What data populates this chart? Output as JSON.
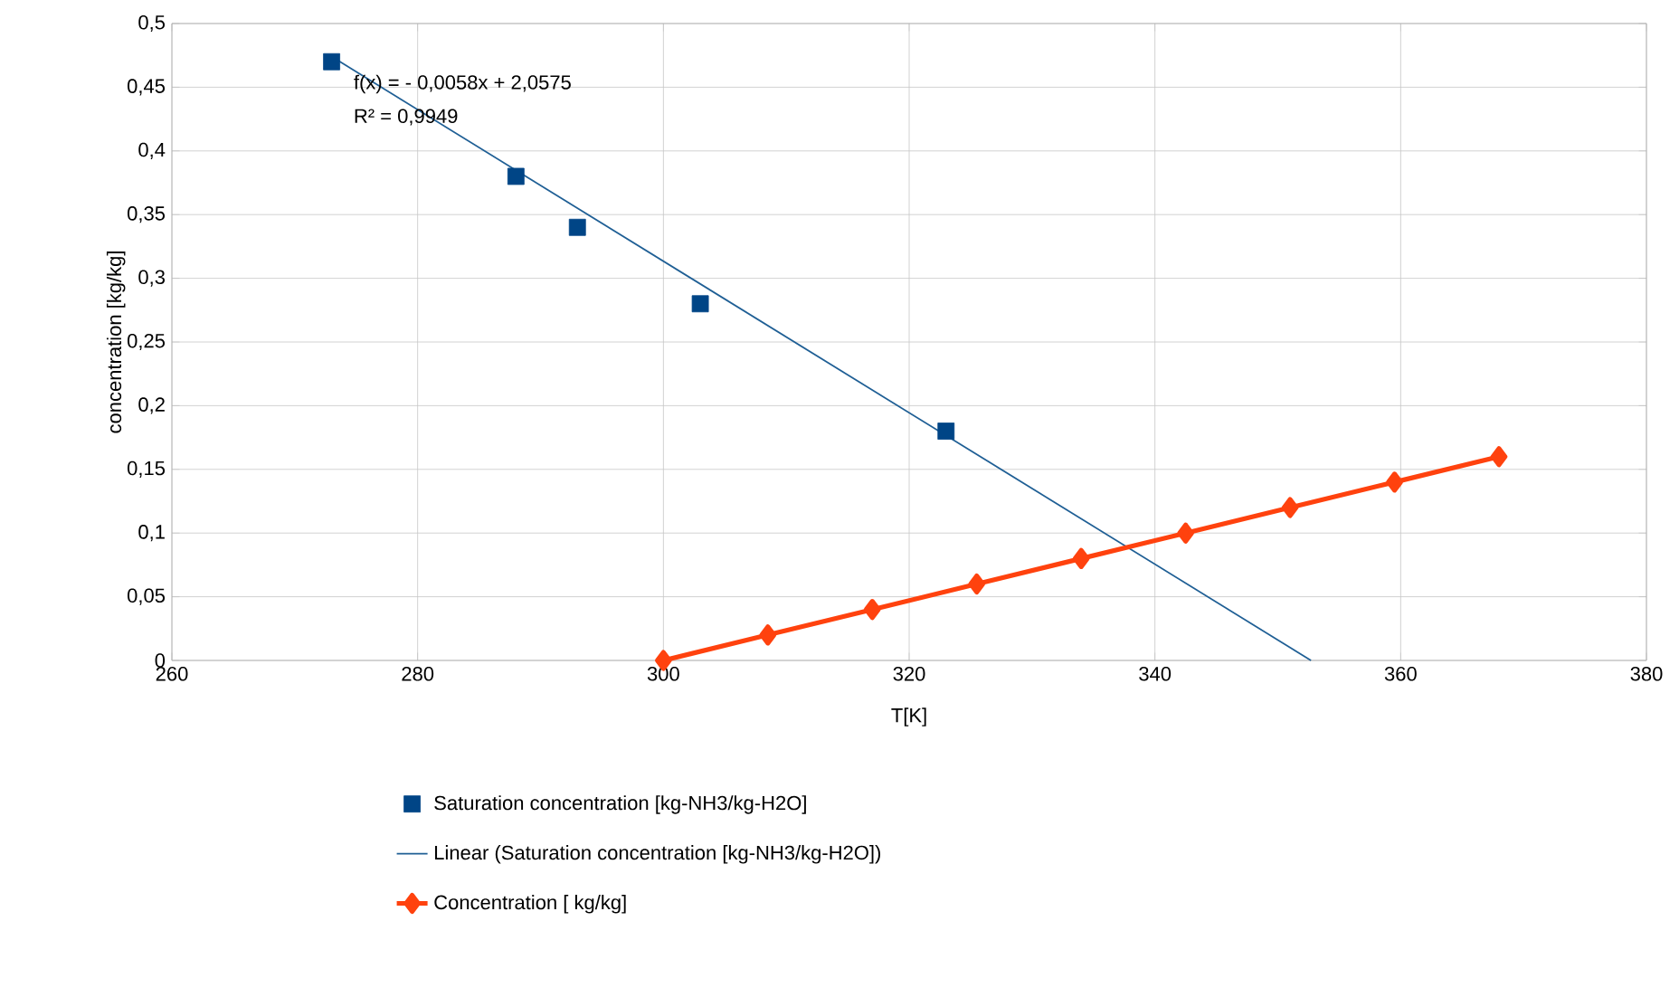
{
  "chart_data": {
    "type": "scatter",
    "xlabel": "T[K]",
    "ylabel": "concentration [kg/kg]",
    "annotations": [
      "f(x) =  - 0,0058x + 2,0575",
      "R² = 0,9949"
    ],
    "series": [
      {
        "name": "Saturation concentration [kg-NH3/kg-H2O]",
        "marker": "square",
        "color": "#004586",
        "x": [
          273,
          288,
          293,
          303,
          323
        ],
        "values": [
          0.47,
          0.38,
          0.34,
          0.28,
          0.18
        ]
      },
      {
        "name": "Linear (Saturation concentration [kg-NH3/kg-H2O])",
        "type": "line",
        "marker": "none",
        "color": "#1f5f95",
        "x": [
          273,
          352.7
        ],
        "values": [
          0.474,
          0
        ]
      },
      {
        "name": "Concentration [ kg/kg]",
        "type": "line",
        "marker": "diamond",
        "color": "#ff420e",
        "x": [
          300,
          308.5,
          317,
          325.5,
          334,
          342.5,
          351,
          359.5,
          368
        ],
        "values": [
          0,
          0.02,
          0.04,
          0.06,
          0.08,
          0.1,
          0.12,
          0.14,
          0.16
        ]
      }
    ],
    "xlim": [
      260,
      380
    ],
    "xticks": [
      260,
      280,
      300,
      320,
      340,
      360,
      380
    ],
    "ylim": [
      0,
      0.5
    ],
    "yticks": [
      0,
      {
        "value": 0.05,
        "label": "0,05"
      },
      {
        "value": 0.1,
        "label": "0,1"
      },
      {
        "value": 0.15,
        "label": "0,15"
      },
      {
        "value": 0.2,
        "label": "0,2"
      },
      {
        "value": 0.25,
        "label": "0,25"
      },
      {
        "value": 0.3,
        "label": "0,3"
      },
      {
        "value": 0.35,
        "label": "0,35"
      },
      {
        "value": 0.4,
        "label": "0,4"
      },
      {
        "value": 0.45,
        "label": "0,45"
      },
      {
        "value": 0.5,
        "label": "0,5"
      }
    ],
    "grid": true,
    "legend": "bottom"
  }
}
